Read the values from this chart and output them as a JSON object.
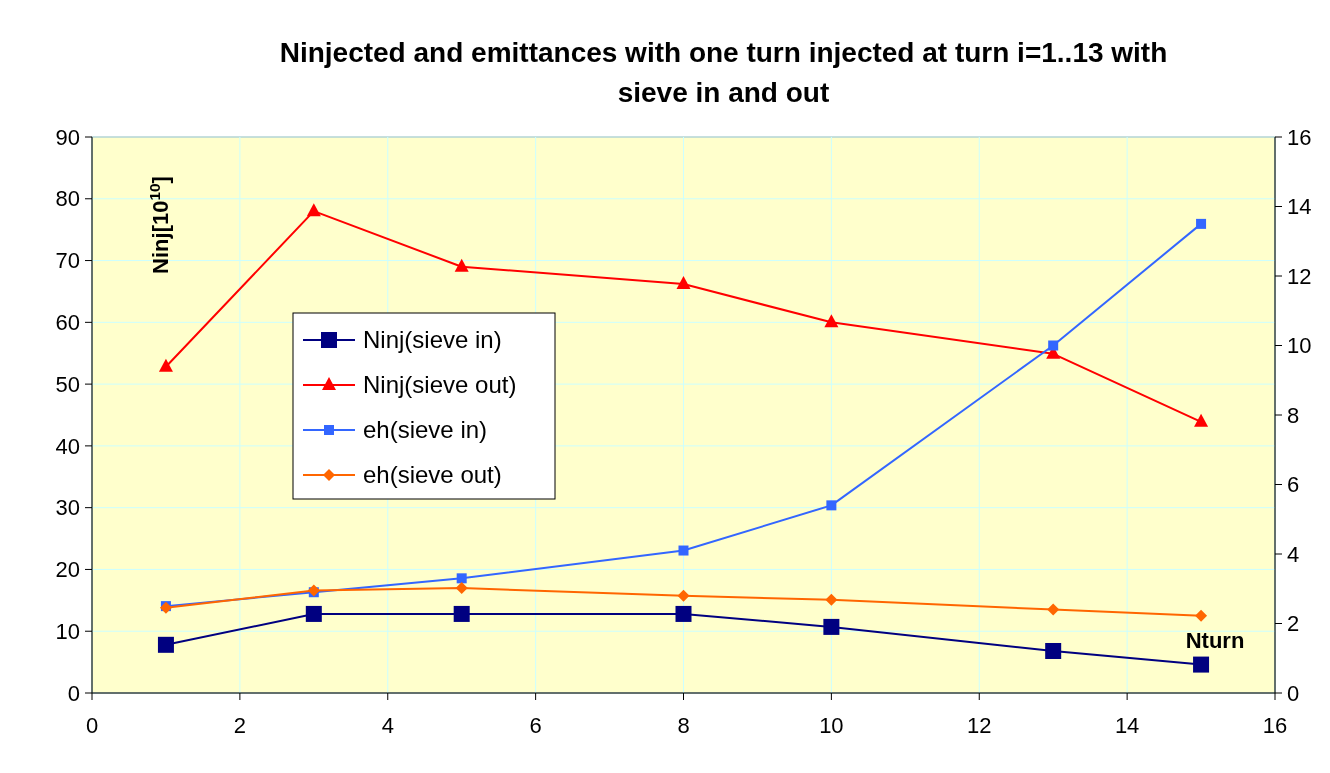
{
  "chart_data": {
    "type": "line",
    "title": "Ninjected and emittances with one turn injected at turn i=1..13  with sieve in and out",
    "ylabel": "Ninj[10$^{10}$]",
    "xlabel": "Nturn",
    "x": [
      1,
      3,
      5,
      8,
      10,
      13,
      15
    ],
    "xlim": [
      0,
      16
    ],
    "xticks": [
      0,
      2,
      4,
      6,
      8,
      10,
      12,
      14,
      16
    ],
    "ylim": [
      0,
      90
    ],
    "yticks": [
      0,
      10,
      20,
      30,
      40,
      50,
      60,
      70,
      80,
      90
    ],
    "y2lim": [
      0,
      16
    ],
    "y2ticks": [
      0,
      2,
      4,
      6,
      8,
      10,
      12,
      14,
      16
    ],
    "grid": true,
    "legend": "left",
    "series": [
      {
        "name": "Ninj(sieve in)",
        "color": "#000080",
        "marker": "square",
        "values": [
          7.8,
          12.8,
          12.8,
          12.8,
          10.7,
          6.8,
          4.6
        ]
      },
      {
        "name": "Ninj(sieve out)",
        "color": "#ff0000",
        "marker": "triangle",
        "values": [
          52.8,
          78,
          69,
          66.2,
          60,
          54.9,
          43.9
        ]
      },
      {
        "name": "eh(sieve in)",
        "color": "#3366ff",
        "marker": "square",
        "axis": "y2",
        "values": [
          2.5,
          2.9,
          3.3,
          4.1,
          5.4,
          10,
          13.5
        ]
      },
      {
        "name": "eh(sieve out)",
        "color": "#ff6600",
        "marker": "diamond",
        "axis": "y2",
        "values": [
          2.45,
          2.95,
          3.02,
          2.8,
          2.68,
          2.4,
          2.22
        ]
      }
    ]
  }
}
